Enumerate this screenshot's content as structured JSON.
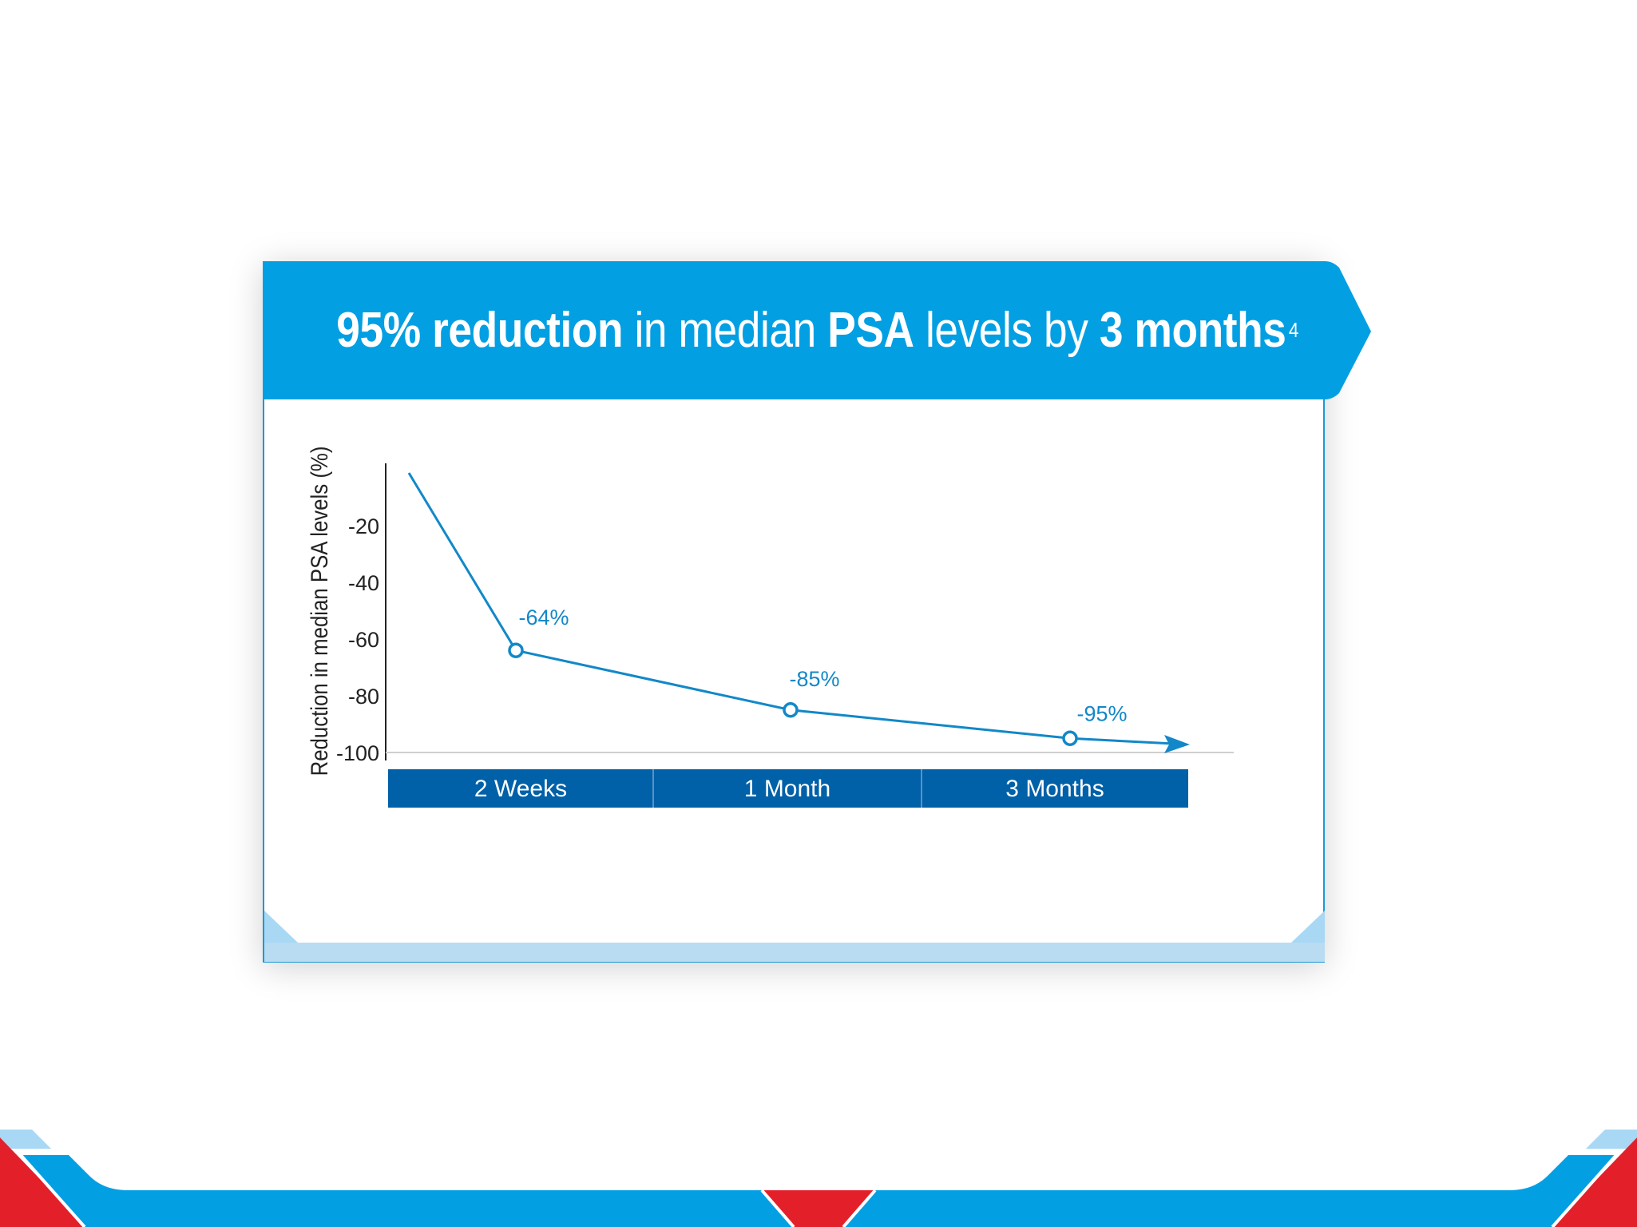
{
  "banner": {
    "title_bold_1": "95% reduction",
    "title_normal_1": " in median ",
    "title_bold_2": "PSA",
    "title_normal_2": " levels by ",
    "title_bold_3": "3 months",
    "footnote": "4"
  },
  "colors": {
    "banner_blue": "#039fe3",
    "line_blue": "#1288c8",
    "category_bar": "#0060a8",
    "red": "#e3202a",
    "light_blue": "#a9d8f4"
  },
  "chart_data": {
    "type": "line",
    "title": "95% reduction in median PSA levels by 3 months",
    "ylabel": "Reduction in median PSA levels (%)",
    "xlabel": "",
    "categories": [
      "2 Weeks",
      "1 Month",
      "3 Months"
    ],
    "yticks": [
      "-20",
      "-40",
      "-60",
      "-80",
      "-100"
    ],
    "ylim": [
      -100,
      0
    ],
    "series": [
      {
        "values": [
          -64,
          -85,
          -95
        ],
        "labels": [
          "-64%",
          "-85%",
          "-95%"
        ]
      }
    ],
    "start_value": 0,
    "arrow_end": true,
    "grid": false
  }
}
